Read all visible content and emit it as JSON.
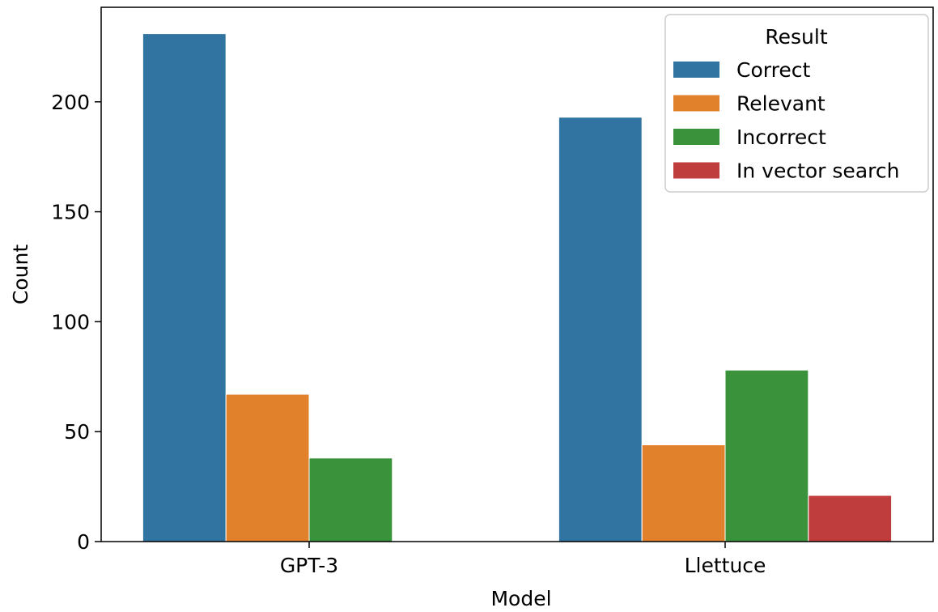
{
  "chart_data": {
    "type": "bar",
    "categories": [
      "GPT-3",
      "Llettuce"
    ],
    "series": [
      {
        "name": "Correct",
        "color": "#3274a1",
        "values": [
          231,
          193
        ]
      },
      {
        "name": "Relevant",
        "color": "#e1812c",
        "values": [
          67,
          44
        ]
      },
      {
        "name": "Incorrect",
        "color": "#3a923a",
        "values": [
          38,
          78
        ]
      },
      {
        "name": "In vector search",
        "color": "#c03d3e",
        "values": [
          0,
          21
        ]
      }
    ],
    "xlabel": "Model",
    "ylabel": "Count",
    "ylim": [
      0,
      243
    ],
    "yticks": [
      0,
      50,
      100,
      150,
      200
    ],
    "legend": {
      "title": "Result",
      "position": "top-right"
    },
    "grid": false
  }
}
